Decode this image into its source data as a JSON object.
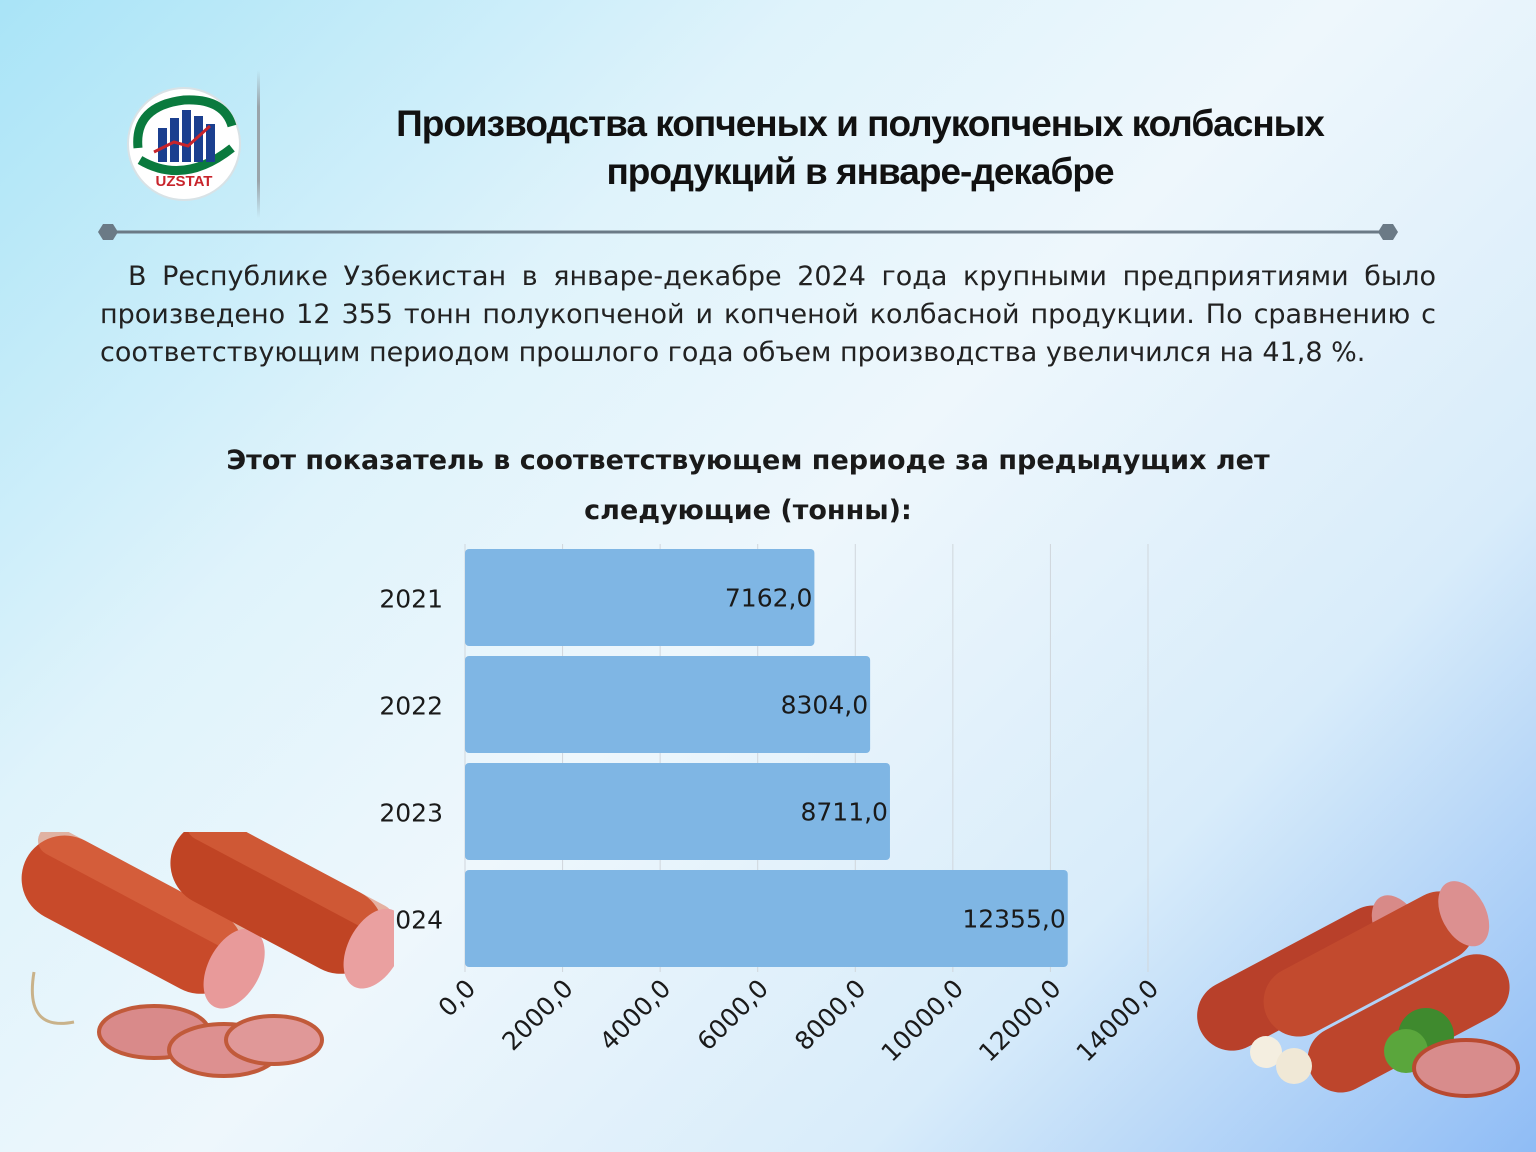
{
  "logo": {
    "text": "UZSTAT"
  },
  "header": {
    "title_line1": "Производства копченых и полукопченых колбасных",
    "title_line2": "продукций в январе-декабре"
  },
  "body": {
    "paragraph": "В Республике Узбекистан в январе-декабре 2024 года крупными предприятиями было произведено 12 355 тонн полукопченой и копченой колбасной продукции. По сравнению с соответствующим периодом прошлого года объем производства увеличился на 41,8 %."
  },
  "chart_heading": {
    "line1": "Этот показатель в соответствующем периоде за предыдущих лет",
    "line2": "следующие  (тонны):"
  },
  "chart_data": {
    "type": "bar",
    "orientation": "horizontal",
    "categories": [
      "2021",
      "2022",
      "2023",
      "2024"
    ],
    "values": [
      7162.0,
      8304.0,
      8711.0,
      12355.0
    ],
    "value_labels": [
      "7162,0",
      "8304,0",
      "8711,0",
      "12355,0"
    ],
    "x_ticks": [
      "0,0",
      "2000,0",
      "4000,0",
      "6000,0",
      "8000,0",
      "10000,0",
      "12000,0",
      "14000,0"
    ],
    "xlim": [
      0,
      14000
    ],
    "grid": true,
    "bar_color": "#7fb6e4"
  },
  "colors": {
    "accent": "#0a6a3a",
    "logo_red": "#c8242b",
    "logo_blue": "#1b3f8f",
    "divider": "#6b7a86"
  }
}
